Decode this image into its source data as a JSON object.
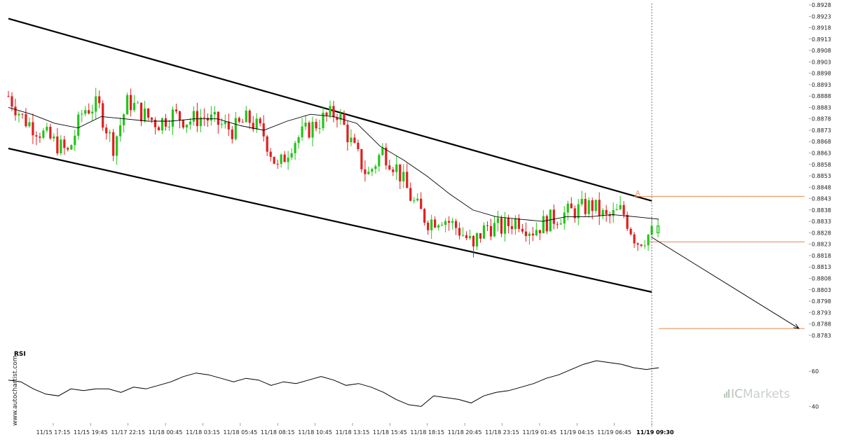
{
  "chart_data": [
    {
      "type": "candlestick",
      "title": "",
      "y_axis_side": "right",
      "ylim": [
        0.87825,
        0.89305
      ],
      "y_ticks": [
        "0.8928",
        "0.8923",
        "0.8918",
        "0.8913",
        "0.8908",
        "0.8903",
        "0.8898",
        "0.8893",
        "0.8888",
        "0.8883",
        "0.8878",
        "0.8873",
        "0.8868",
        "0.8863",
        "0.8858",
        "0.8853",
        "0.8848",
        "0.8843",
        "0.8838",
        "0.8833",
        "0.8828",
        "0.8823",
        "0.8818",
        "0.8813",
        "0.8808",
        "0.8803",
        "0.8798",
        "0.8793",
        "0.8788",
        "0.8783"
      ],
      "x_ticks": [
        "11/15 17:15",
        "11/15 19:45",
        "11/17 22:15",
        "11/18 00:45",
        "11/18 03:15",
        "11/18 05:45",
        "11/18 08:15",
        "11/18 10:45",
        "11/18 13:15",
        "11/18 15:45",
        "11/18 18:15",
        "11/18 20:45",
        "11/18 23:15",
        "11/19 01:45",
        "11/19 04:15",
        "11/19 06:45",
        "11/19 09:30"
      ],
      "x_tick_last_bold": true,
      "colors": {
        "up": "#22c41a",
        "down": "#e01e1e",
        "ma": "#000000",
        "channel": "#000000",
        "level": "#e8864a",
        "forecast": "#000000"
      },
      "close_path": [
        0.8888,
        0.8878,
        0.8873,
        0.8868,
        0.8863,
        0.8882,
        0.8884,
        0.8866,
        0.8886,
        0.888,
        0.8876,
        0.888,
        0.8877,
        0.8879,
        0.8876,
        0.8873,
        0.8878,
        0.8872,
        0.8856,
        0.8868,
        0.8873,
        0.8878,
        0.8881,
        0.8866,
        0.8853,
        0.8864,
        0.8856,
        0.8842,
        0.8833,
        0.8835,
        0.883,
        0.8823,
        0.8831,
        0.883,
        0.8834,
        0.8829,
        0.8833,
        0.8836,
        0.8838,
        0.884,
        0.8834,
        0.8838,
        0.8824,
        0.8828
      ],
      "moving_average": [
        0.8883,
        0.888,
        0.8876,
        0.8874,
        0.8879,
        0.8878,
        0.8877,
        0.8877,
        0.8878,
        0.8878,
        0.8875,
        0.8873,
        0.8877,
        0.888,
        0.8879,
        0.8876,
        0.8866,
        0.886,
        0.8853,
        0.8845,
        0.8838,
        0.8835,
        0.8834,
        0.8833,
        0.8835,
        0.8835,
        0.8836,
        0.8835,
        0.8834
      ],
      "upper_channel": {
        "from": 0.8922,
        "to": 0.8842
      },
      "lower_channel": {
        "from": 0.8865,
        "to": 0.8802
      },
      "marker_label": "A",
      "levels": [
        0.8844,
        0.8824,
        0.8786
      ],
      "forecast": {
        "from": 0.8826,
        "to": 0.8786
      }
    },
    {
      "type": "line",
      "title": "RSI",
      "y_ticks": [
        "60",
        "40"
      ],
      "ylim": [
        33,
        72
      ],
      "values": [
        55,
        54,
        50,
        47,
        46,
        50,
        49,
        50,
        50,
        48,
        51,
        50,
        52,
        54,
        57,
        59,
        58,
        56,
        54,
        56,
        55,
        52,
        54,
        53,
        55,
        57,
        55,
        52,
        53,
        51,
        48,
        44,
        41,
        40,
        46,
        45,
        44,
        42,
        46,
        48,
        49,
        51,
        53,
        56,
        58,
        61,
        64,
        66,
        65,
        64,
        62,
        61,
        62
      ]
    }
  ],
  "watermark": {
    "brand": "ICMarkets",
    "brand_prefix": "IC",
    "brand_suffix": "Markets",
    "source": "www.autochartist.com"
  }
}
